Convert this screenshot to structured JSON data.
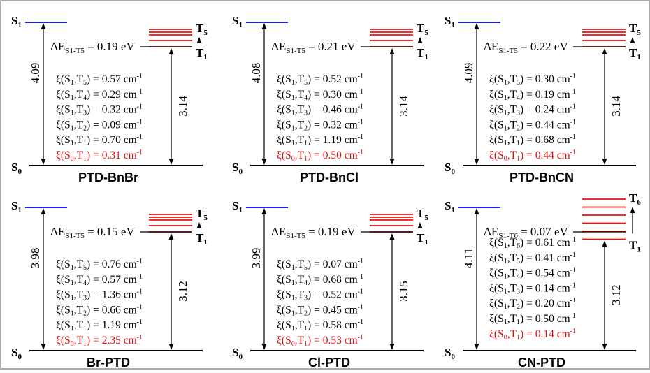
{
  "colors": {
    "border": "#aaaaaa",
    "level_s1": "#1a1aff",
    "level_triplet": "#ee1111",
    "text": "#000000",
    "highlight": "#dd1111"
  },
  "unit": "cm",
  "panels": [
    {
      "name": "PTD-BnBr",
      "s1_energy": "4.09",
      "t1_energy": "3.14",
      "gap": {
        "target": "T5",
        "target_label_sub": "5",
        "value": "0.19 eV",
        "delta_sub": "S1-T5"
      },
      "n_triplets": 5,
      "socs": [
        {
          "a": "1",
          "b": "5",
          "value": "0.57"
        },
        {
          "a": "1",
          "b": "4",
          "value": "0.29"
        },
        {
          "a": "1",
          "b": "3",
          "value": "0.32"
        },
        {
          "a": "1",
          "b": "2",
          "value": "0.09"
        },
        {
          "a": "1",
          "b": "1",
          "value": "0.70"
        },
        {
          "a": "0",
          "b": "1",
          "value": "0.31",
          "highlight": true
        }
      ]
    },
    {
      "name": "PTD-BnCl",
      "s1_energy": "4.08",
      "t1_energy": "3.14",
      "gap": {
        "target": "T5",
        "target_label_sub": "5",
        "value": "0.21 eV",
        "delta_sub": "S1-T5"
      },
      "n_triplets": 5,
      "socs": [
        {
          "a": "1",
          "b": "5",
          "value": "0.52"
        },
        {
          "a": "1",
          "b": "4",
          "value": "0.30"
        },
        {
          "a": "1",
          "b": "3",
          "value": "0.46"
        },
        {
          "a": "1",
          "b": "2",
          "value": "0.32"
        },
        {
          "a": "1",
          "b": "1",
          "value": "1.19"
        },
        {
          "a": "0",
          "b": "1",
          "value": "0.50",
          "highlight": true
        }
      ]
    },
    {
      "name": "PTD-BnCN",
      "s1_energy": "4.09",
      "t1_energy": "3.14",
      "gap": {
        "target": "T5",
        "target_label_sub": "5",
        "value": "0.22 eV",
        "delta_sub": "S1-T5"
      },
      "n_triplets": 5,
      "socs": [
        {
          "a": "1",
          "b": "5",
          "value": "0.30"
        },
        {
          "a": "1",
          "b": "4",
          "value": "0.19"
        },
        {
          "a": "1",
          "b": "3",
          "value": "0.24"
        },
        {
          "a": "1",
          "b": "2",
          "value": "0.44"
        },
        {
          "a": "1",
          "b": "1",
          "value": "0.68"
        },
        {
          "a": "0",
          "b": "1",
          "value": "0.44",
          "highlight": true
        }
      ]
    },
    {
      "name": "Br-PTD",
      "s1_energy": "3.98",
      "t1_energy": "3.12",
      "gap": {
        "target": "T5",
        "target_label_sub": "5",
        "value": "0.15 eV",
        "delta_sub": "S1-T5"
      },
      "n_triplets": 5,
      "socs": [
        {
          "a": "1",
          "b": "5",
          "value": "0.76"
        },
        {
          "a": "1",
          "b": "4",
          "value": "0.57"
        },
        {
          "a": "1",
          "b": "3",
          "value": "1.36"
        },
        {
          "a": "1",
          "b": "2",
          "value": "0.66"
        },
        {
          "a": "1",
          "b": "1",
          "value": "1.19"
        },
        {
          "a": "0",
          "b": "1",
          "value": "2.35",
          "highlight": true
        }
      ]
    },
    {
      "name": "Cl-PTD",
      "s1_energy": "3.99",
      "t1_energy": "3.15",
      "gap": {
        "target": "T5",
        "target_label_sub": "5",
        "value": "0.19 eV",
        "delta_sub": "S1-T5"
      },
      "n_triplets": 5,
      "socs": [
        {
          "a": "1",
          "b": "5",
          "value": "0.07"
        },
        {
          "a": "1",
          "b": "4",
          "value": "0.68"
        },
        {
          "a": "1",
          "b": "3",
          "value": "0.52"
        },
        {
          "a": "1",
          "b": "2",
          "value": "0.45"
        },
        {
          "a": "1",
          "b": "1",
          "value": "0.58"
        },
        {
          "a": "0",
          "b": "1",
          "value": "0.53",
          "highlight": true
        }
      ]
    },
    {
      "name": "CN-PTD",
      "s1_energy": "4.11",
      "t1_energy": "3.12",
      "gap": {
        "target": "T6",
        "target_label_sub": "6",
        "value": "0.07 eV",
        "delta_sub": "S1-T6"
      },
      "n_triplets": 6,
      "socs": [
        {
          "a": "1",
          "b": "6",
          "value": "0.61"
        },
        {
          "a": "1",
          "b": "5",
          "value": "0.41"
        },
        {
          "a": "1",
          "b": "4",
          "value": "0.54"
        },
        {
          "a": "1",
          "b": "3",
          "value": "0.14"
        },
        {
          "a": "1",
          "b": "2",
          "value": "0.20"
        },
        {
          "a": "1",
          "b": "1",
          "value": "0.50"
        },
        {
          "a": "0",
          "b": "1",
          "value": "0.14",
          "highlight": true
        }
      ]
    }
  ]
}
